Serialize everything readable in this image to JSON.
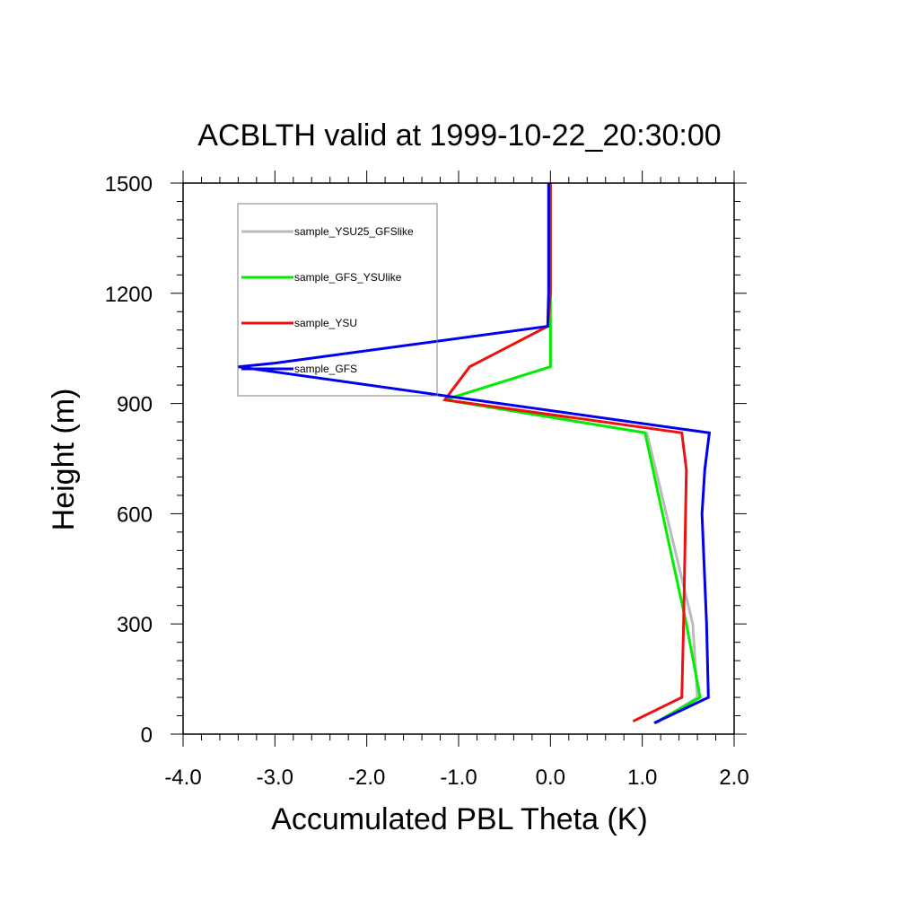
{
  "chart_data": {
    "type": "line",
    "title": "ACBLTH valid at 1999-10-22_20:30:00",
    "xlabel": "Accumulated PBL Theta (K)",
    "ylabel": "Height (m)",
    "xlim": [
      -4.0,
      2.0
    ],
    "ylim": [
      0,
      1500
    ],
    "x_ticks": [
      {
        "value": -4.0,
        "label": "-4.0"
      },
      {
        "value": -3.0,
        "label": "-3.0"
      },
      {
        "value": -2.0,
        "label": "-2.0"
      },
      {
        "value": -1.0,
        "label": "-1.0"
      },
      {
        "value": 0.0,
        "label": "0.0"
      },
      {
        "value": 1.0,
        "label": "1.0"
      },
      {
        "value": 2.0,
        "label": "2.0"
      }
    ],
    "y_ticks": [
      {
        "value": 0,
        "label": "0"
      },
      {
        "value": 300,
        "label": "300"
      },
      {
        "value": 600,
        "label": "600"
      },
      {
        "value": 900,
        "label": "900"
      },
      {
        "value": 1200,
        "label": "1200"
      },
      {
        "value": 1500,
        "label": "1500"
      }
    ],
    "grid": false,
    "legend_position": "top-left",
    "series": [
      {
        "name": "sample_YSU25_GFSlike",
        "color": "#bbbbbb",
        "points": [
          [
            1.15,
            30
          ],
          [
            1.6,
            100
          ],
          [
            1.55,
            300
          ],
          [
            1.05,
            820
          ],
          [
            -1.15,
            910
          ],
          [
            0.0,
            1000
          ],
          [
            0.0,
            1100
          ],
          [
            0.0,
            1200
          ],
          [
            0.0,
            1500
          ]
        ]
      },
      {
        "name": "sample_GFS_YSUlike",
        "color": "#00ee00",
        "points": [
          [
            1.13,
            30
          ],
          [
            1.63,
            100
          ],
          [
            1.48,
            300
          ],
          [
            1.03,
            820
          ],
          [
            -1.15,
            910
          ],
          [
            0.0,
            1000
          ],
          [
            0.0,
            1100
          ],
          [
            0.0,
            1200
          ],
          [
            0.0,
            1500
          ]
        ]
      },
      {
        "name": "sample_YSU",
        "color": "#ee1111",
        "points": [
          [
            0.9,
            35
          ],
          [
            1.43,
            100
          ],
          [
            1.45,
            300
          ],
          [
            1.48,
            720
          ],
          [
            1.43,
            820
          ],
          [
            -1.15,
            910
          ],
          [
            -0.88,
            1000
          ],
          [
            -0.03,
            1110
          ],
          [
            0.0,
            1200
          ],
          [
            0.0,
            1500
          ]
        ]
      },
      {
        "name": "sample_GFS",
        "color": "#0000ee",
        "points": [
          [
            1.13,
            30
          ],
          [
            1.72,
            100
          ],
          [
            1.7,
            300
          ],
          [
            1.65,
            600
          ],
          [
            1.68,
            720
          ],
          [
            1.73,
            820
          ],
          [
            -3.4,
            1000
          ],
          [
            -3.0,
            1010
          ],
          [
            -0.03,
            1110
          ],
          [
            -0.02,
            1200
          ],
          [
            -0.02,
            1500
          ]
        ]
      }
    ]
  }
}
